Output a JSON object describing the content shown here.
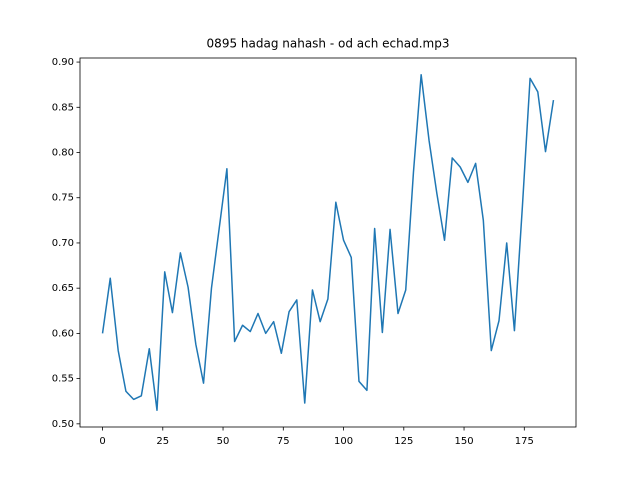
{
  "chart_data": {
    "type": "line",
    "title": "0895 hadag nahash - od ach echad.mp3",
    "x": [
      0,
      3.2,
      6.5,
      9.7,
      12.9,
      16.1,
      19.4,
      22.6,
      25.8,
      29.0,
      32.3,
      35.5,
      38.7,
      41.9,
      45.2,
      48.4,
      51.6,
      54.8,
      58.1,
      61.3,
      64.5,
      67.7,
      71.0,
      74.2,
      77.4,
      80.6,
      83.9,
      87.1,
      90.3,
      93.5,
      96.8,
      100.0,
      103.2,
      106.4,
      109.7,
      112.9,
      116.1,
      119.3,
      122.6,
      125.8,
      129.0,
      132.2,
      135.5,
      138.7,
      141.9,
      145.1,
      148.4,
      151.6,
      154.8,
      158.0,
      161.3,
      164.5,
      167.7,
      170.9,
      174.2,
      177.4,
      180.6,
      183.8,
      187.1
    ],
    "series": [
      {
        "color": "#1f77b4",
        "values": [
          0.6,
          0.661,
          0.581,
          0.536,
          0.527,
          0.531,
          0.583,
          0.515,
          0.668,
          0.623,
          0.689,
          0.651,
          0.588,
          0.545,
          0.65,
          0.716,
          0.782,
          0.591,
          0.609,
          0.602,
          0.622,
          0.6,
          0.613,
          0.578,
          0.624,
          0.637,
          0.523,
          0.648,
          0.613,
          0.638,
          0.745,
          0.703,
          0.684,
          0.547,
          0.537,
          0.716,
          0.601,
          0.715,
          0.622,
          0.648,
          0.778,
          0.886,
          0.813,
          0.755,
          0.703,
          0.794,
          0.784,
          0.767,
          0.788,
          0.725,
          0.581,
          0.614,
          0.7,
          0.603,
          0.74,
          0.882,
          0.867,
          0.801,
          0.858
        ]
      }
    ],
    "xlim": [
      -9.35,
      196.45
    ],
    "ylim": [
      0.4965,
      0.9045
    ],
    "xticks": [
      0,
      25,
      50,
      75,
      100,
      125,
      150,
      175
    ],
    "yticks": [
      {
        "value": 0.5,
        "label": "0.50"
      },
      {
        "value": 0.55,
        "label": "0.55"
      },
      {
        "value": 0.6,
        "label": "0.60"
      },
      {
        "value": 0.65,
        "label": "0.65"
      },
      {
        "value": 0.7,
        "label": "0.70"
      },
      {
        "value": 0.75,
        "label": "0.75"
      },
      {
        "value": 0.8,
        "label": "0.80"
      },
      {
        "value": 0.85,
        "label": "0.85"
      },
      {
        "value": 0.9,
        "label": "0.90"
      }
    ],
    "grid": false
  }
}
